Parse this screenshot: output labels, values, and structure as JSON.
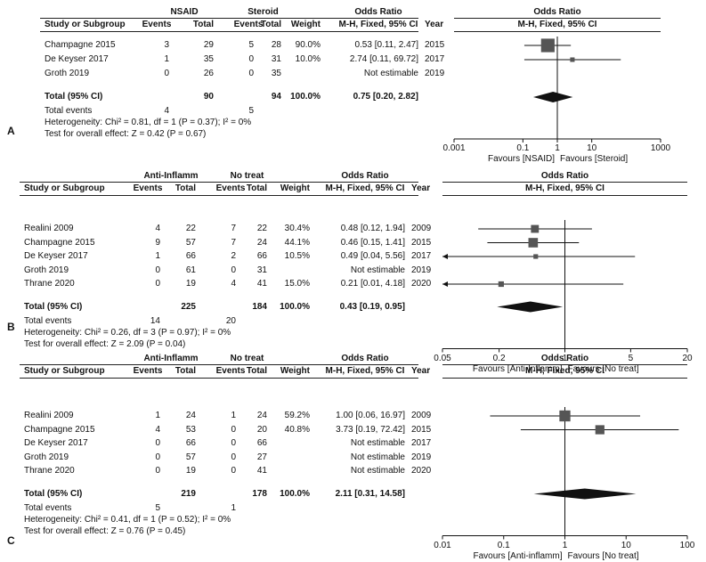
{
  "chart_data": [
    {
      "type": "forest",
      "label": "A",
      "group_headers": [
        "NSAID",
        "Steroid"
      ],
      "columns": [
        "Study or Subgroup",
        "Events",
        "Total",
        "Events",
        "Total",
        "Weight",
        "M-H, Fixed, 95% CI",
        "Year"
      ],
      "or_header": "Odds Ratio",
      "plot_header": [
        "Odds Ratio",
        "M-H, Fixed, 95% CI"
      ],
      "studies": [
        {
          "name": "Champagne 2015",
          "e1": "3",
          "t1": "29",
          "e2": "5",
          "t2": "28",
          "weight": "90.0%",
          "ci_text": "0.53 [0.11, 2.47]",
          "year": "2015",
          "or": 0.53,
          "lo": 0.11,
          "hi": 2.47
        },
        {
          "name": "De Keyser 2017",
          "e1": "1",
          "t1": "35",
          "e2": "0",
          "t2": "31",
          "weight": "10.0%",
          "ci_text": "2.74 [0.11, 69.72]",
          "year": "2017",
          "or": 2.74,
          "lo": 0.11,
          "hi": 69.72
        },
        {
          "name": "Groth 2019",
          "e1": "0",
          "t1": "26",
          "e2": "0",
          "t2": "35",
          "weight": "",
          "ci_text": "Not estimable",
          "year": "2019",
          "or": null,
          "lo": null,
          "hi": null
        }
      ],
      "total": {
        "label": "Total (95% CI)",
        "t1": "90",
        "t2": "94",
        "weight": "100.0%",
        "ci_text": "0.75 [0.20, 2.82]",
        "or": 0.75,
        "lo": 0.2,
        "hi": 2.82
      },
      "total_events": {
        "label": "Total events",
        "e1": "4",
        "e2": "5"
      },
      "heterogeneity": "Heterogeneity: Chi² = 0.81, df = 1 (P = 0.37); I² = 0%",
      "overall": "Test for overall effect: Z = 0.42 (P = 0.67)",
      "axis": {
        "scale": "log",
        "min": 0.001,
        "max": 1000,
        "ticks": [
          "0.001",
          "0.1",
          "1",
          "10",
          "1000"
        ],
        "tick_values": [
          0.001,
          0.1,
          1,
          10,
          1000
        ]
      },
      "favours": [
        "Favours [NSAID]",
        "Favours [Steroid]"
      ]
    },
    {
      "type": "forest",
      "label": "B",
      "group_headers": [
        "Anti-Inflamm",
        "No treat"
      ],
      "columns": [
        "Study or Subgroup",
        "Events",
        "Total",
        "Events",
        "Total",
        "Weight",
        "M-H, Fixed, 95% CI",
        "Year"
      ],
      "or_header": "Odds Ratio",
      "plot_header": [
        "Odds Ratio",
        "M-H, Fixed, 95% CI"
      ],
      "studies": [
        {
          "name": "Realini 2009",
          "e1": "4",
          "t1": "22",
          "e2": "7",
          "t2": "22",
          "weight": "30.4%",
          "ci_text": "0.48 [0.12, 1.94]",
          "year": "2009",
          "or": 0.48,
          "lo": 0.12,
          "hi": 1.94
        },
        {
          "name": "Champagne 2015",
          "e1": "9",
          "t1": "57",
          "e2": "7",
          "t2": "24",
          "weight": "44.1%",
          "ci_text": "0.46 [0.15, 1.41]",
          "year": "2015",
          "or": 0.46,
          "lo": 0.15,
          "hi": 1.41
        },
        {
          "name": "De Keyser 2017",
          "e1": "1",
          "t1": "66",
          "e2": "2",
          "t2": "66",
          "weight": "10.5%",
          "ci_text": "0.49 [0.04, 5.56]",
          "year": "2017",
          "or": 0.49,
          "lo": 0.04,
          "hi": 5.56
        },
        {
          "name": "Groth 2019",
          "e1": "0",
          "t1": "61",
          "e2": "0",
          "t2": "31",
          "weight": "",
          "ci_text": "Not estimable",
          "year": "2019",
          "or": null,
          "lo": null,
          "hi": null
        },
        {
          "name": "Thrane 2020",
          "e1": "0",
          "t1": "19",
          "e2": "4",
          "t2": "41",
          "weight": "15.0%",
          "ci_text": "0.21 [0.01, 4.18]",
          "year": "2020",
          "or": 0.21,
          "lo": 0.01,
          "hi": 4.18
        }
      ],
      "total": {
        "label": "Total (95% CI)",
        "t1": "225",
        "t2": "184",
        "weight": "100.0%",
        "ci_text": "0.43 [0.19, 0.95]",
        "or": 0.43,
        "lo": 0.19,
        "hi": 0.95
      },
      "total_events": {
        "label": "Total events",
        "e1": "14",
        "e2": "20"
      },
      "heterogeneity": "Heterogeneity: Chi² = 0.26, df = 3 (P = 0.97); I² = 0%",
      "overall": "Test for overall effect: Z = 2.09 (P = 0.04)",
      "axis": {
        "scale": "log",
        "min": 0.05,
        "max": 20,
        "ticks": [
          "0.05",
          "0.2",
          "1",
          "5",
          "20"
        ],
        "tick_values": [
          0.05,
          0.2,
          1,
          5,
          20
        ]
      },
      "favours": [
        "Favours [Anti-Inflamm]",
        "Favours [No treat]"
      ]
    },
    {
      "type": "forest",
      "label": "C",
      "group_headers": [
        "Anti-Inflamm",
        "No treat"
      ],
      "columns": [
        "Study or Subgroup",
        "Events",
        "Total",
        "Events",
        "Total",
        "Weight",
        "M-H, Fixed, 95% CI",
        "Year"
      ],
      "or_header": "Odds Ratio",
      "plot_header": [
        "Odds Ratio",
        "M-H, Fixed, 95% CI"
      ],
      "studies": [
        {
          "name": "Realini 2009",
          "e1": "1",
          "t1": "24",
          "e2": "1",
          "t2": "24",
          "weight": "59.2%",
          "ci_text": "1.00 [0.06, 16.97]",
          "year": "2009",
          "or": 1.0,
          "lo": 0.06,
          "hi": 16.97
        },
        {
          "name": "Champagne 2015",
          "e1": "4",
          "t1": "53",
          "e2": "0",
          "t2": "20",
          "weight": "40.8%",
          "ci_text": "3.73 [0.19, 72.42]",
          "year": "2015",
          "or": 3.73,
          "lo": 0.19,
          "hi": 72.42
        },
        {
          "name": "De Keyser 2017",
          "e1": "0",
          "t1": "66",
          "e2": "0",
          "t2": "66",
          "weight": "",
          "ci_text": "Not estimable",
          "year": "2017",
          "or": null,
          "lo": null,
          "hi": null
        },
        {
          "name": "Groth 2019",
          "e1": "0",
          "t1": "57",
          "e2": "0",
          "t2": "27",
          "weight": "",
          "ci_text": "Not estimable",
          "year": "2019",
          "or": null,
          "lo": null,
          "hi": null
        },
        {
          "name": "Thrane 2020",
          "e1": "0",
          "t1": "19",
          "e2": "0",
          "t2": "41",
          "weight": "",
          "ci_text": "Not estimable",
          "year": "2020",
          "or": null,
          "lo": null,
          "hi": null
        }
      ],
      "total": {
        "label": "Total (95% CI)",
        "t1": "219",
        "t2": "178",
        "weight": "100.0%",
        "ci_text": "2.11 [0.31, 14.58]",
        "or": 2.11,
        "lo": 0.31,
        "hi": 14.58
      },
      "total_events": {
        "label": "Total events",
        "e1": "5",
        "e2": "1"
      },
      "heterogeneity": "Heterogeneity: Chi² = 0.41, df = 1 (P = 0.52); I² = 0%",
      "overall": "Test for overall effect: Z = 0.76 (P = 0.45)",
      "axis": {
        "scale": "log",
        "min": 0.01,
        "max": 100,
        "ticks": [
          "0.01",
          "0.1",
          "1",
          "10",
          "100"
        ],
        "tick_values": [
          0.01,
          0.1,
          1,
          10,
          100
        ]
      },
      "favours": [
        "Favours [Anti-inflamm]",
        "Favours [No treat]"
      ]
    }
  ]
}
